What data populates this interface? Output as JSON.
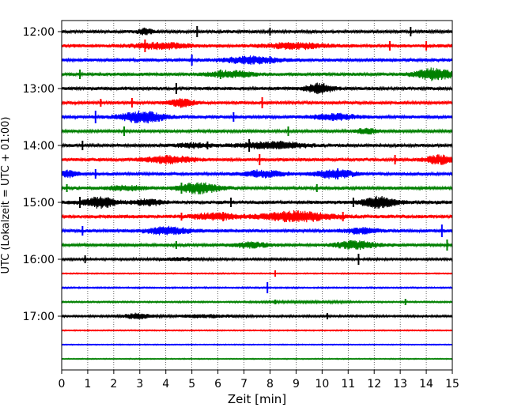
{
  "chart_data": {
    "type": "line",
    "title": "",
    "xlabel": "Zeit  [min]",
    "ylabel": "UTC (Lokalzeit = UTC + 01:00)",
    "xlim": [
      0,
      15
    ],
    "xticks": [
      "0",
      "1",
      "2",
      "3",
      "4",
      "5",
      "6",
      "7",
      "8",
      "9",
      "10",
      "11",
      "12",
      "13",
      "14",
      "15"
    ],
    "yticks": [
      {
        "label": "12:00",
        "row": 0
      },
      {
        "label": "13:00",
        "row": 4
      },
      {
        "label": "14:00",
        "row": 8
      },
      {
        "label": "15:00",
        "row": 12
      },
      {
        "label": "16:00",
        "row": 16
      },
      {
        "label": "17:00",
        "row": 20
      }
    ],
    "grid": {
      "x": true,
      "style": "dotted"
    },
    "row_interval_minutes": 15,
    "colors": [
      "#000000",
      "#ff0000",
      "#0000ff",
      "#008000"
    ],
    "rows": [
      {
        "start": "12:00",
        "amp": 2.2,
        "spikes": [
          [
            5.2,
            7
          ],
          [
            8.0,
            5
          ],
          [
            13.4,
            6
          ]
        ],
        "bursts": [
          [
            3.2,
            0.3,
            1.5
          ]
        ]
      },
      {
        "start": "12:15",
        "amp": 2.5,
        "spikes": [
          [
            3.2,
            8
          ],
          [
            12.6,
            6
          ],
          [
            14.0,
            6
          ]
        ],
        "bursts": [
          [
            3.8,
            1.0,
            1.3
          ],
          [
            9.0,
            1.0,
            1.3
          ]
        ]
      },
      {
        "start": "12:30",
        "amp": 2.4,
        "spikes": [
          [
            5.0,
            7
          ],
          [
            8.0,
            5
          ]
        ],
        "bursts": [
          [
            7.3,
            1.0,
            1.6
          ]
        ]
      },
      {
        "start": "12:45",
        "amp": 2.4,
        "spikes": [
          [
            0.7,
            6
          ],
          [
            6.1,
            6
          ]
        ],
        "bursts": [
          [
            14.3,
            0.7,
            2.8
          ],
          [
            6.5,
            0.8,
            1.5
          ]
        ]
      },
      {
        "start": "13:00",
        "amp": 2.4,
        "spikes": [
          [
            4.4,
            7
          ]
        ],
        "bursts": [
          [
            9.9,
            0.5,
            2.5
          ]
        ]
      },
      {
        "start": "13:15",
        "amp": 2.2,
        "spikes": [
          [
            1.5,
            5
          ],
          [
            2.7,
            6
          ],
          [
            7.7,
            7
          ]
        ],
        "bursts": [
          [
            4.6,
            0.5,
            2.0
          ]
        ]
      },
      {
        "start": "13:30",
        "amp": 2.3,
        "spikes": [
          [
            1.3,
            8
          ],
          [
            6.6,
            6
          ]
        ],
        "bursts": [
          [
            3.1,
            0.8,
            3.0
          ],
          [
            10.5,
            0.8,
            1.5
          ]
        ]
      },
      {
        "start": "13:45",
        "amp": 2.0,
        "spikes": [
          [
            2.4,
            6
          ],
          [
            8.7,
            6
          ]
        ],
        "bursts": [
          [
            11.7,
            0.4,
            1.6
          ]
        ]
      },
      {
        "start": "14:00",
        "amp": 2.2,
        "spikes": [
          [
            0.8,
            6
          ],
          [
            5.6,
            5
          ],
          [
            7.2,
            8
          ]
        ],
        "bursts": [
          [
            8.1,
            1.3,
            1.8
          ],
          [
            5.0,
            0.6,
            1.2
          ]
        ]
      },
      {
        "start": "14:15",
        "amp": 2.4,
        "spikes": [
          [
            7.6,
            7
          ],
          [
            12.8,
            6
          ]
        ],
        "bursts": [
          [
            4.1,
            0.9,
            1.7
          ],
          [
            14.5,
            0.5,
            2.0
          ]
        ]
      },
      {
        "start": "14:30",
        "amp": 2.3,
        "spikes": [
          [
            1.3,
            6
          ],
          [
            10.6,
            7
          ]
        ],
        "bursts": [
          [
            10.5,
            0.7,
            2.2
          ],
          [
            7.7,
            0.8,
            1.6
          ],
          [
            0.3,
            0.3,
            1.7
          ]
        ]
      },
      {
        "start": "14:45",
        "amp": 2.2,
        "spikes": [
          [
            0.2,
            5
          ],
          [
            4.6,
            7
          ],
          [
            9.8,
            5
          ]
        ],
        "bursts": [
          [
            5.3,
            0.8,
            2.8
          ],
          [
            2.5,
            0.7,
            1.2
          ]
        ]
      },
      {
        "start": "15:00",
        "amp": 2.6,
        "spikes": [
          [
            0.7,
            7
          ],
          [
            6.5,
            6
          ],
          [
            11.2,
            6
          ]
        ],
        "bursts": [
          [
            1.5,
            0.6,
            2.4
          ],
          [
            12.2,
            0.6,
            2.5
          ],
          [
            3.3,
            0.5,
            1.3
          ]
        ]
      },
      {
        "start": "15:15",
        "amp": 2.6,
        "spikes": [
          [
            4.6,
            5
          ],
          [
            6.2,
            6
          ],
          [
            10.8,
            6
          ]
        ],
        "bursts": [
          [
            9.0,
            1.3,
            2.2
          ],
          [
            5.9,
            0.8,
            1.4
          ]
        ]
      },
      {
        "start": "15:30",
        "amp": 2.4,
        "spikes": [
          [
            0.8,
            6
          ],
          [
            14.6,
            8
          ]
        ],
        "bursts": [
          [
            4.1,
            0.8,
            1.8
          ],
          [
            11.5,
            0.6,
            1.3
          ]
        ]
      },
      {
        "start": "15:45",
        "amp": 2.2,
        "spikes": [
          [
            4.4,
            5
          ],
          [
            14.8,
            7
          ]
        ],
        "bursts": [
          [
            11.3,
            0.8,
            2.1
          ],
          [
            7.3,
            0.7,
            1.3
          ]
        ]
      },
      {
        "start": "16:00",
        "amp": 1.5,
        "spikes": [
          [
            0.9,
            5
          ],
          [
            11.4,
            7
          ]
        ],
        "bursts": [
          [
            4.5,
            0.7,
            1.1
          ]
        ]
      },
      {
        "start": "16:15",
        "amp": 0.8,
        "spikes": [
          [
            8.2,
            4
          ]
        ],
        "bursts": []
      },
      {
        "start": "16:30",
        "amp": 1.0,
        "spikes": [
          [
            7.9,
            7
          ]
        ],
        "bursts": []
      },
      {
        "start": "16:45",
        "amp": 1.1,
        "spikes": [
          [
            8.2,
            3
          ],
          [
            13.2,
            4
          ]
        ],
        "bursts": [
          [
            9.5,
            1.5,
            0.9
          ]
        ]
      },
      {
        "start": "17:00",
        "amp": 1.4,
        "spikes": [
          [
            10.2,
            4
          ]
        ],
        "bursts": [
          [
            2.9,
            0.5,
            2.4
          ],
          [
            5.5,
            1.2,
            1.1
          ]
        ]
      },
      {
        "start": "17:15",
        "amp": 0.8,
        "spikes": [],
        "bursts": []
      },
      {
        "start": "17:30",
        "amp": 0.7,
        "spikes": [],
        "bursts": []
      },
      {
        "start": "17:45",
        "amp": 0.7,
        "spikes": [],
        "bursts": []
      }
    ]
  }
}
